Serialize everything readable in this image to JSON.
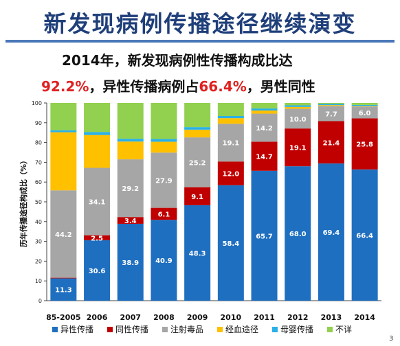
{
  "header": {
    "title": "新发现病例传播途径继续演变",
    "line1": "2014年，新发现病例性传播构成比达",
    "line2_a": "92.2%",
    "line2_b": "，异性传播病例占",
    "line2_c": "66.4%",
    "line2_d": "，男性同性"
  },
  "colors": {
    "hetero": "#1f6fc0",
    "homo": "#c00000",
    "drug": "#a6a6a6",
    "blood": "#ffc000",
    "mother": "#2ab0e8",
    "unknown": "#92d050"
  },
  "chart_data": {
    "type": "bar",
    "stacked": true,
    "ylabel": "历年传播途径构成比（%）",
    "ylim": [
      0,
      100
    ],
    "yticks": [
      0,
      10,
      20,
      30,
      40,
      50,
      60,
      70,
      80,
      90,
      100
    ],
    "categories": [
      "85-2005",
      "2006",
      "2007",
      "2008",
      "2009",
      "2010",
      "2011",
      "2012",
      "2013",
      "2014"
    ],
    "series": [
      {
        "name": "异性传播",
        "key": "hetero",
        "values": [
          11.3,
          30.6,
          38.9,
          40.9,
          48.3,
          58.4,
          65.7,
          68.0,
          69.4,
          66.4
        ],
        "labels": [
          "11.3",
          "30.6",
          "38.9",
          "40.9",
          "48.3",
          "58.4",
          "65.7",
          "68.0",
          "69.4",
          "66.4"
        ]
      },
      {
        "name": "同性传播",
        "key": "homo",
        "values": [
          0.3,
          2.5,
          3.4,
          6.1,
          9.1,
          12.0,
          14.7,
          19.1,
          21.4,
          25.8
        ],
        "labels": [
          "0.3",
          "2.5",
          "3.4",
          "6.1",
          "9.1",
          "12.0",
          "14.7",
          "19.1",
          "21.4",
          "25.8"
        ]
      },
      {
        "name": "注射毒品",
        "key": "drug",
        "values": [
          44.2,
          34.1,
          29.2,
          27.9,
          25.2,
          19.1,
          14.2,
          10.0,
          7.7,
          6.0
        ],
        "labels": [
          "44.2",
          "34.1",
          "29.2",
          "27.9",
          "25.2",
          "19.1",
          "14.2",
          "10.0",
          "7.7",
          "6.0"
        ]
      },
      {
        "name": "经血途径",
        "key": "blood",
        "values": [
          29.4,
          16.6,
          9.0,
          5.5,
          3.9,
          2.8,
          1.6,
          0.9,
          0.4,
          0.3
        ],
        "labels": [
          "",
          "",
          "",
          "",
          "",
          "",
          "",
          "",
          "",
          ""
        ]
      },
      {
        "name": "母婴传播",
        "key": "mother",
        "values": [
          1.0,
          1.5,
          1.4,
          1.4,
          1.3,
          1.1,
          1.0,
          0.8,
          0.6,
          0.5
        ],
        "labels": [
          "",
          "",
          "",
          "",
          "",
          "",
          "",
          "",
          "",
          ""
        ]
      },
      {
        "name": "不详",
        "key": "unknown",
        "values": [
          13.8,
          14.7,
          18.1,
          18.2,
          12.2,
          6.6,
          2.8,
          1.2,
          0.5,
          1.0
        ],
        "labels": [
          "",
          "",
          "",
          "",
          "",
          "",
          "",
          "",
          "",
          ""
        ]
      }
    ]
  },
  "footer": {
    "page": "3"
  }
}
